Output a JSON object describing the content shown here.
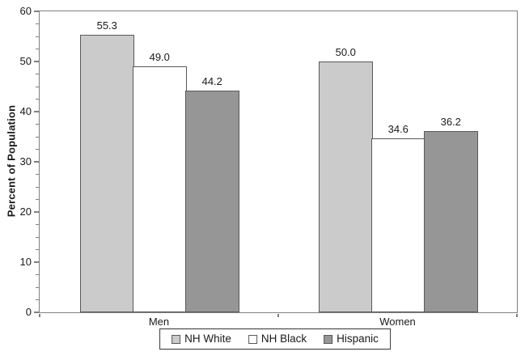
{
  "chart_data": {
    "type": "bar",
    "title": "",
    "xlabel": "",
    "ylabel": "Percent of Population",
    "categories": [
      "Men",
      "Women"
    ],
    "series": [
      {
        "name": "NH White",
        "values": [
          55.3,
          50.0
        ],
        "fill": "#cbcbcb"
      },
      {
        "name": "NH Black",
        "values": [
          49.0,
          34.6
        ],
        "fill": "#ffffff"
      },
      {
        "name": "Hispanic",
        "values": [
          44.2,
          36.2
        ],
        "fill": "#969696"
      }
    ],
    "ylim": [
      0,
      60
    ],
    "y_major_ticks": [
      0,
      10,
      20,
      30,
      40,
      50,
      60
    ],
    "y_minor_tick_step": 2.5,
    "grid": false,
    "legend_position": "bottom",
    "value_labels_shown": true,
    "value_label_decimals": 1,
    "colors": {
      "bar_border": "#595959",
      "axis_line": "#808080",
      "legend_border": "#333333",
      "text": "#1a1a1a",
      "background": "#ffffff"
    }
  }
}
